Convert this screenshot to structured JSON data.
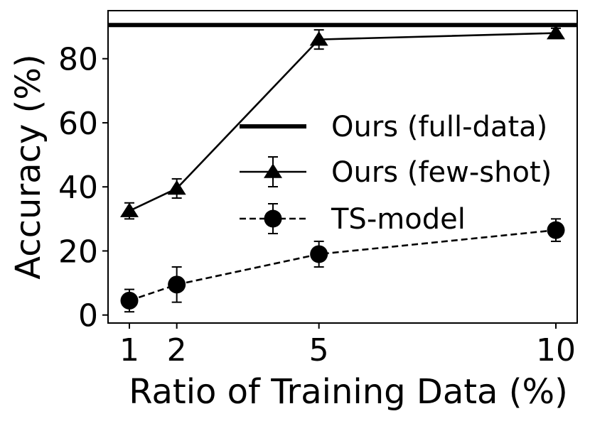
{
  "chart_data": {
    "type": "line",
    "xlabel": "Ratio of Training Data (%)",
    "ylabel": "Accuracy (%)",
    "x_ticks": [
      1,
      2,
      5,
      10
    ],
    "y_ticks": [
      0,
      20,
      40,
      60,
      80
    ],
    "xlim": [
      0.55,
      10.45
    ],
    "ylim": [
      -2.5,
      95
    ],
    "grid": false,
    "legend_position": "center-right",
    "series": [
      {
        "name": "Ours (full-data)",
        "style": "horizontal-line",
        "marker": "none",
        "line": "solid",
        "y": 90.5,
        "color": "#000000"
      },
      {
        "name": "Ours (few-shot)",
        "marker": "triangle",
        "line": "solid",
        "color": "#000000",
        "x": [
          1,
          2,
          5,
          10
        ],
        "y": [
          32.5,
          39.5,
          86,
          88
        ],
        "err": [
          2.5,
          3,
          3,
          1.5
        ]
      },
      {
        "name": "TS-model",
        "marker": "circle",
        "line": "dashed",
        "color": "#000000",
        "x": [
          1,
          2,
          5,
          10
        ],
        "y": [
          4.5,
          9.5,
          19,
          26.5
        ],
        "err": [
          3.5,
          5.5,
          4,
          3.5
        ]
      }
    ]
  }
}
